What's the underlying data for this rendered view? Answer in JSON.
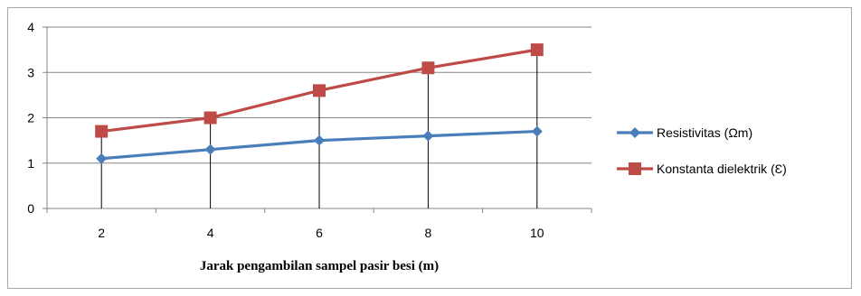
{
  "chart_data": {
    "type": "line",
    "title": "",
    "xlabel": "Jarak  pengambilan sampel  pasir  besi  (m)",
    "ylabel": "",
    "x": [
      2,
      4,
      6,
      8,
      10
    ],
    "ylim": [
      0,
      4
    ],
    "yticks": [
      0,
      1,
      2,
      3,
      4
    ],
    "grid": true,
    "legend_position": "right",
    "drop_lines": true,
    "series": [
      {
        "name": "Resistivitas (Ωm)",
        "values": [
          1.1,
          1.3,
          1.5,
          1.6,
          1.7
        ],
        "color": "#4a7ebb",
        "marker": "diamond"
      },
      {
        "name": "Konstanta  dielektrik (Ɛ)",
        "values": [
          1.7,
          2.0,
          2.6,
          3.1,
          3.5
        ],
        "color": "#be4b48",
        "marker": "square"
      }
    ]
  }
}
